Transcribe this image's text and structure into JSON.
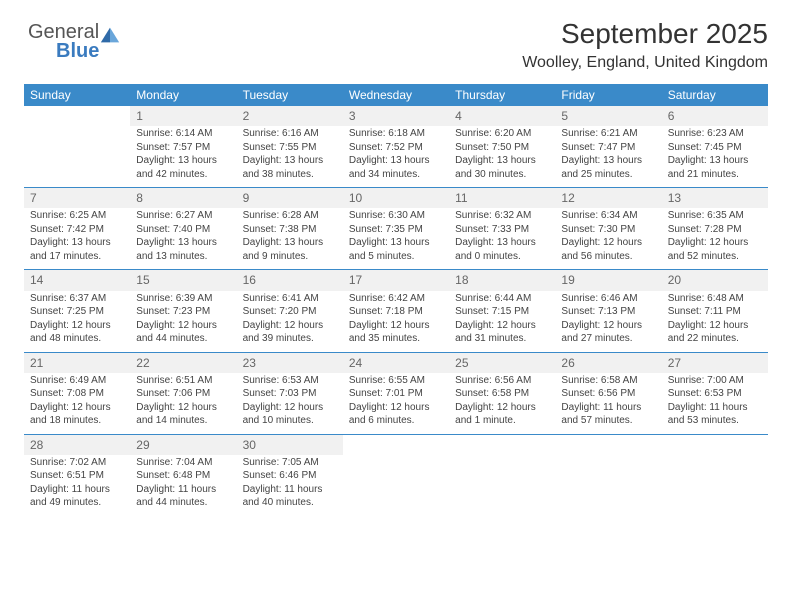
{
  "logo": {
    "word1": "General",
    "word2": "Blue"
  },
  "title": "September 2025",
  "subtitle": "Woolley, England, United Kingdom",
  "colors": {
    "header_bg": "#3a8ac9",
    "header_text": "#ffffff",
    "accent": "#3a7bbf",
    "daynum_bg": "#f1f1f1",
    "border": "#3a8ac9"
  },
  "weekdays": [
    "Sunday",
    "Monday",
    "Tuesday",
    "Wednesday",
    "Thursday",
    "Friday",
    "Saturday"
  ],
  "weeks": [
    [
      null,
      {
        "n": "1",
        "sr": "Sunrise: 6:14 AM",
        "ss": "Sunset: 7:57 PM",
        "dl": "Daylight: 13 hours and 42 minutes."
      },
      {
        "n": "2",
        "sr": "Sunrise: 6:16 AM",
        "ss": "Sunset: 7:55 PM",
        "dl": "Daylight: 13 hours and 38 minutes."
      },
      {
        "n": "3",
        "sr": "Sunrise: 6:18 AM",
        "ss": "Sunset: 7:52 PM",
        "dl": "Daylight: 13 hours and 34 minutes."
      },
      {
        "n": "4",
        "sr": "Sunrise: 6:20 AM",
        "ss": "Sunset: 7:50 PM",
        "dl": "Daylight: 13 hours and 30 minutes."
      },
      {
        "n": "5",
        "sr": "Sunrise: 6:21 AM",
        "ss": "Sunset: 7:47 PM",
        "dl": "Daylight: 13 hours and 25 minutes."
      },
      {
        "n": "6",
        "sr": "Sunrise: 6:23 AM",
        "ss": "Sunset: 7:45 PM",
        "dl": "Daylight: 13 hours and 21 minutes."
      }
    ],
    [
      {
        "n": "7",
        "sr": "Sunrise: 6:25 AM",
        "ss": "Sunset: 7:42 PM",
        "dl": "Daylight: 13 hours and 17 minutes."
      },
      {
        "n": "8",
        "sr": "Sunrise: 6:27 AM",
        "ss": "Sunset: 7:40 PM",
        "dl": "Daylight: 13 hours and 13 minutes."
      },
      {
        "n": "9",
        "sr": "Sunrise: 6:28 AM",
        "ss": "Sunset: 7:38 PM",
        "dl": "Daylight: 13 hours and 9 minutes."
      },
      {
        "n": "10",
        "sr": "Sunrise: 6:30 AM",
        "ss": "Sunset: 7:35 PM",
        "dl": "Daylight: 13 hours and 5 minutes."
      },
      {
        "n": "11",
        "sr": "Sunrise: 6:32 AM",
        "ss": "Sunset: 7:33 PM",
        "dl": "Daylight: 13 hours and 0 minutes."
      },
      {
        "n": "12",
        "sr": "Sunrise: 6:34 AM",
        "ss": "Sunset: 7:30 PM",
        "dl": "Daylight: 12 hours and 56 minutes."
      },
      {
        "n": "13",
        "sr": "Sunrise: 6:35 AM",
        "ss": "Sunset: 7:28 PM",
        "dl": "Daylight: 12 hours and 52 minutes."
      }
    ],
    [
      {
        "n": "14",
        "sr": "Sunrise: 6:37 AM",
        "ss": "Sunset: 7:25 PM",
        "dl": "Daylight: 12 hours and 48 minutes."
      },
      {
        "n": "15",
        "sr": "Sunrise: 6:39 AM",
        "ss": "Sunset: 7:23 PM",
        "dl": "Daylight: 12 hours and 44 minutes."
      },
      {
        "n": "16",
        "sr": "Sunrise: 6:41 AM",
        "ss": "Sunset: 7:20 PM",
        "dl": "Daylight: 12 hours and 39 minutes."
      },
      {
        "n": "17",
        "sr": "Sunrise: 6:42 AM",
        "ss": "Sunset: 7:18 PM",
        "dl": "Daylight: 12 hours and 35 minutes."
      },
      {
        "n": "18",
        "sr": "Sunrise: 6:44 AM",
        "ss": "Sunset: 7:15 PM",
        "dl": "Daylight: 12 hours and 31 minutes."
      },
      {
        "n": "19",
        "sr": "Sunrise: 6:46 AM",
        "ss": "Sunset: 7:13 PM",
        "dl": "Daylight: 12 hours and 27 minutes."
      },
      {
        "n": "20",
        "sr": "Sunrise: 6:48 AM",
        "ss": "Sunset: 7:11 PM",
        "dl": "Daylight: 12 hours and 22 minutes."
      }
    ],
    [
      {
        "n": "21",
        "sr": "Sunrise: 6:49 AM",
        "ss": "Sunset: 7:08 PM",
        "dl": "Daylight: 12 hours and 18 minutes."
      },
      {
        "n": "22",
        "sr": "Sunrise: 6:51 AM",
        "ss": "Sunset: 7:06 PM",
        "dl": "Daylight: 12 hours and 14 minutes."
      },
      {
        "n": "23",
        "sr": "Sunrise: 6:53 AM",
        "ss": "Sunset: 7:03 PM",
        "dl": "Daylight: 12 hours and 10 minutes."
      },
      {
        "n": "24",
        "sr": "Sunrise: 6:55 AM",
        "ss": "Sunset: 7:01 PM",
        "dl": "Daylight: 12 hours and 6 minutes."
      },
      {
        "n": "25",
        "sr": "Sunrise: 6:56 AM",
        "ss": "Sunset: 6:58 PM",
        "dl": "Daylight: 12 hours and 1 minute."
      },
      {
        "n": "26",
        "sr": "Sunrise: 6:58 AM",
        "ss": "Sunset: 6:56 PM",
        "dl": "Daylight: 11 hours and 57 minutes."
      },
      {
        "n": "27",
        "sr": "Sunrise: 7:00 AM",
        "ss": "Sunset: 6:53 PM",
        "dl": "Daylight: 11 hours and 53 minutes."
      }
    ],
    [
      {
        "n": "28",
        "sr": "Sunrise: 7:02 AM",
        "ss": "Sunset: 6:51 PM",
        "dl": "Daylight: 11 hours and 49 minutes."
      },
      {
        "n": "29",
        "sr": "Sunrise: 7:04 AM",
        "ss": "Sunset: 6:48 PM",
        "dl": "Daylight: 11 hours and 44 minutes."
      },
      {
        "n": "30",
        "sr": "Sunrise: 7:05 AM",
        "ss": "Sunset: 6:46 PM",
        "dl": "Daylight: 11 hours and 40 minutes."
      },
      null,
      null,
      null,
      null
    ]
  ]
}
